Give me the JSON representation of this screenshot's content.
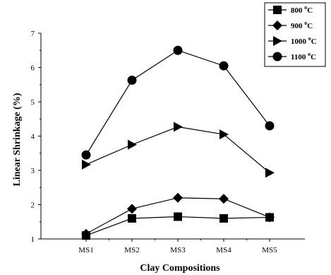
{
  "chart_data": {
    "type": "line",
    "xlabel": "Clay Compositions",
    "ylabel": "Linear Shrinkage (%)",
    "categories": [
      "MS1",
      "MS2",
      "MS3",
      "MS4",
      "MS5"
    ],
    "ylim": [
      1,
      7
    ],
    "yticks": [
      1,
      2,
      3,
      4,
      5,
      6,
      7
    ],
    "grid": false,
    "legend_position": "top-right",
    "series": [
      {
        "name": "800",
        "unit_sup": "o",
        "unit": "C",
        "marker": "square",
        "values": [
          1.1,
          1.6,
          1.65,
          1.6,
          1.63
        ]
      },
      {
        "name": "900",
        "unit_sup": "o",
        "unit": "C",
        "marker": "diamond",
        "values": [
          1.15,
          1.88,
          2.2,
          2.17,
          1.63
        ]
      },
      {
        "name": "1000",
        "unit_sup": "o",
        "unit": "C",
        "marker": "triangle-right",
        "values": [
          3.17,
          3.75,
          4.27,
          4.05,
          2.93
        ]
      },
      {
        "name": "1100",
        "unit_sup": "o",
        "unit": "C",
        "marker": "circle",
        "values": [
          3.45,
          5.63,
          6.5,
          6.05,
          4.3
        ]
      }
    ]
  }
}
